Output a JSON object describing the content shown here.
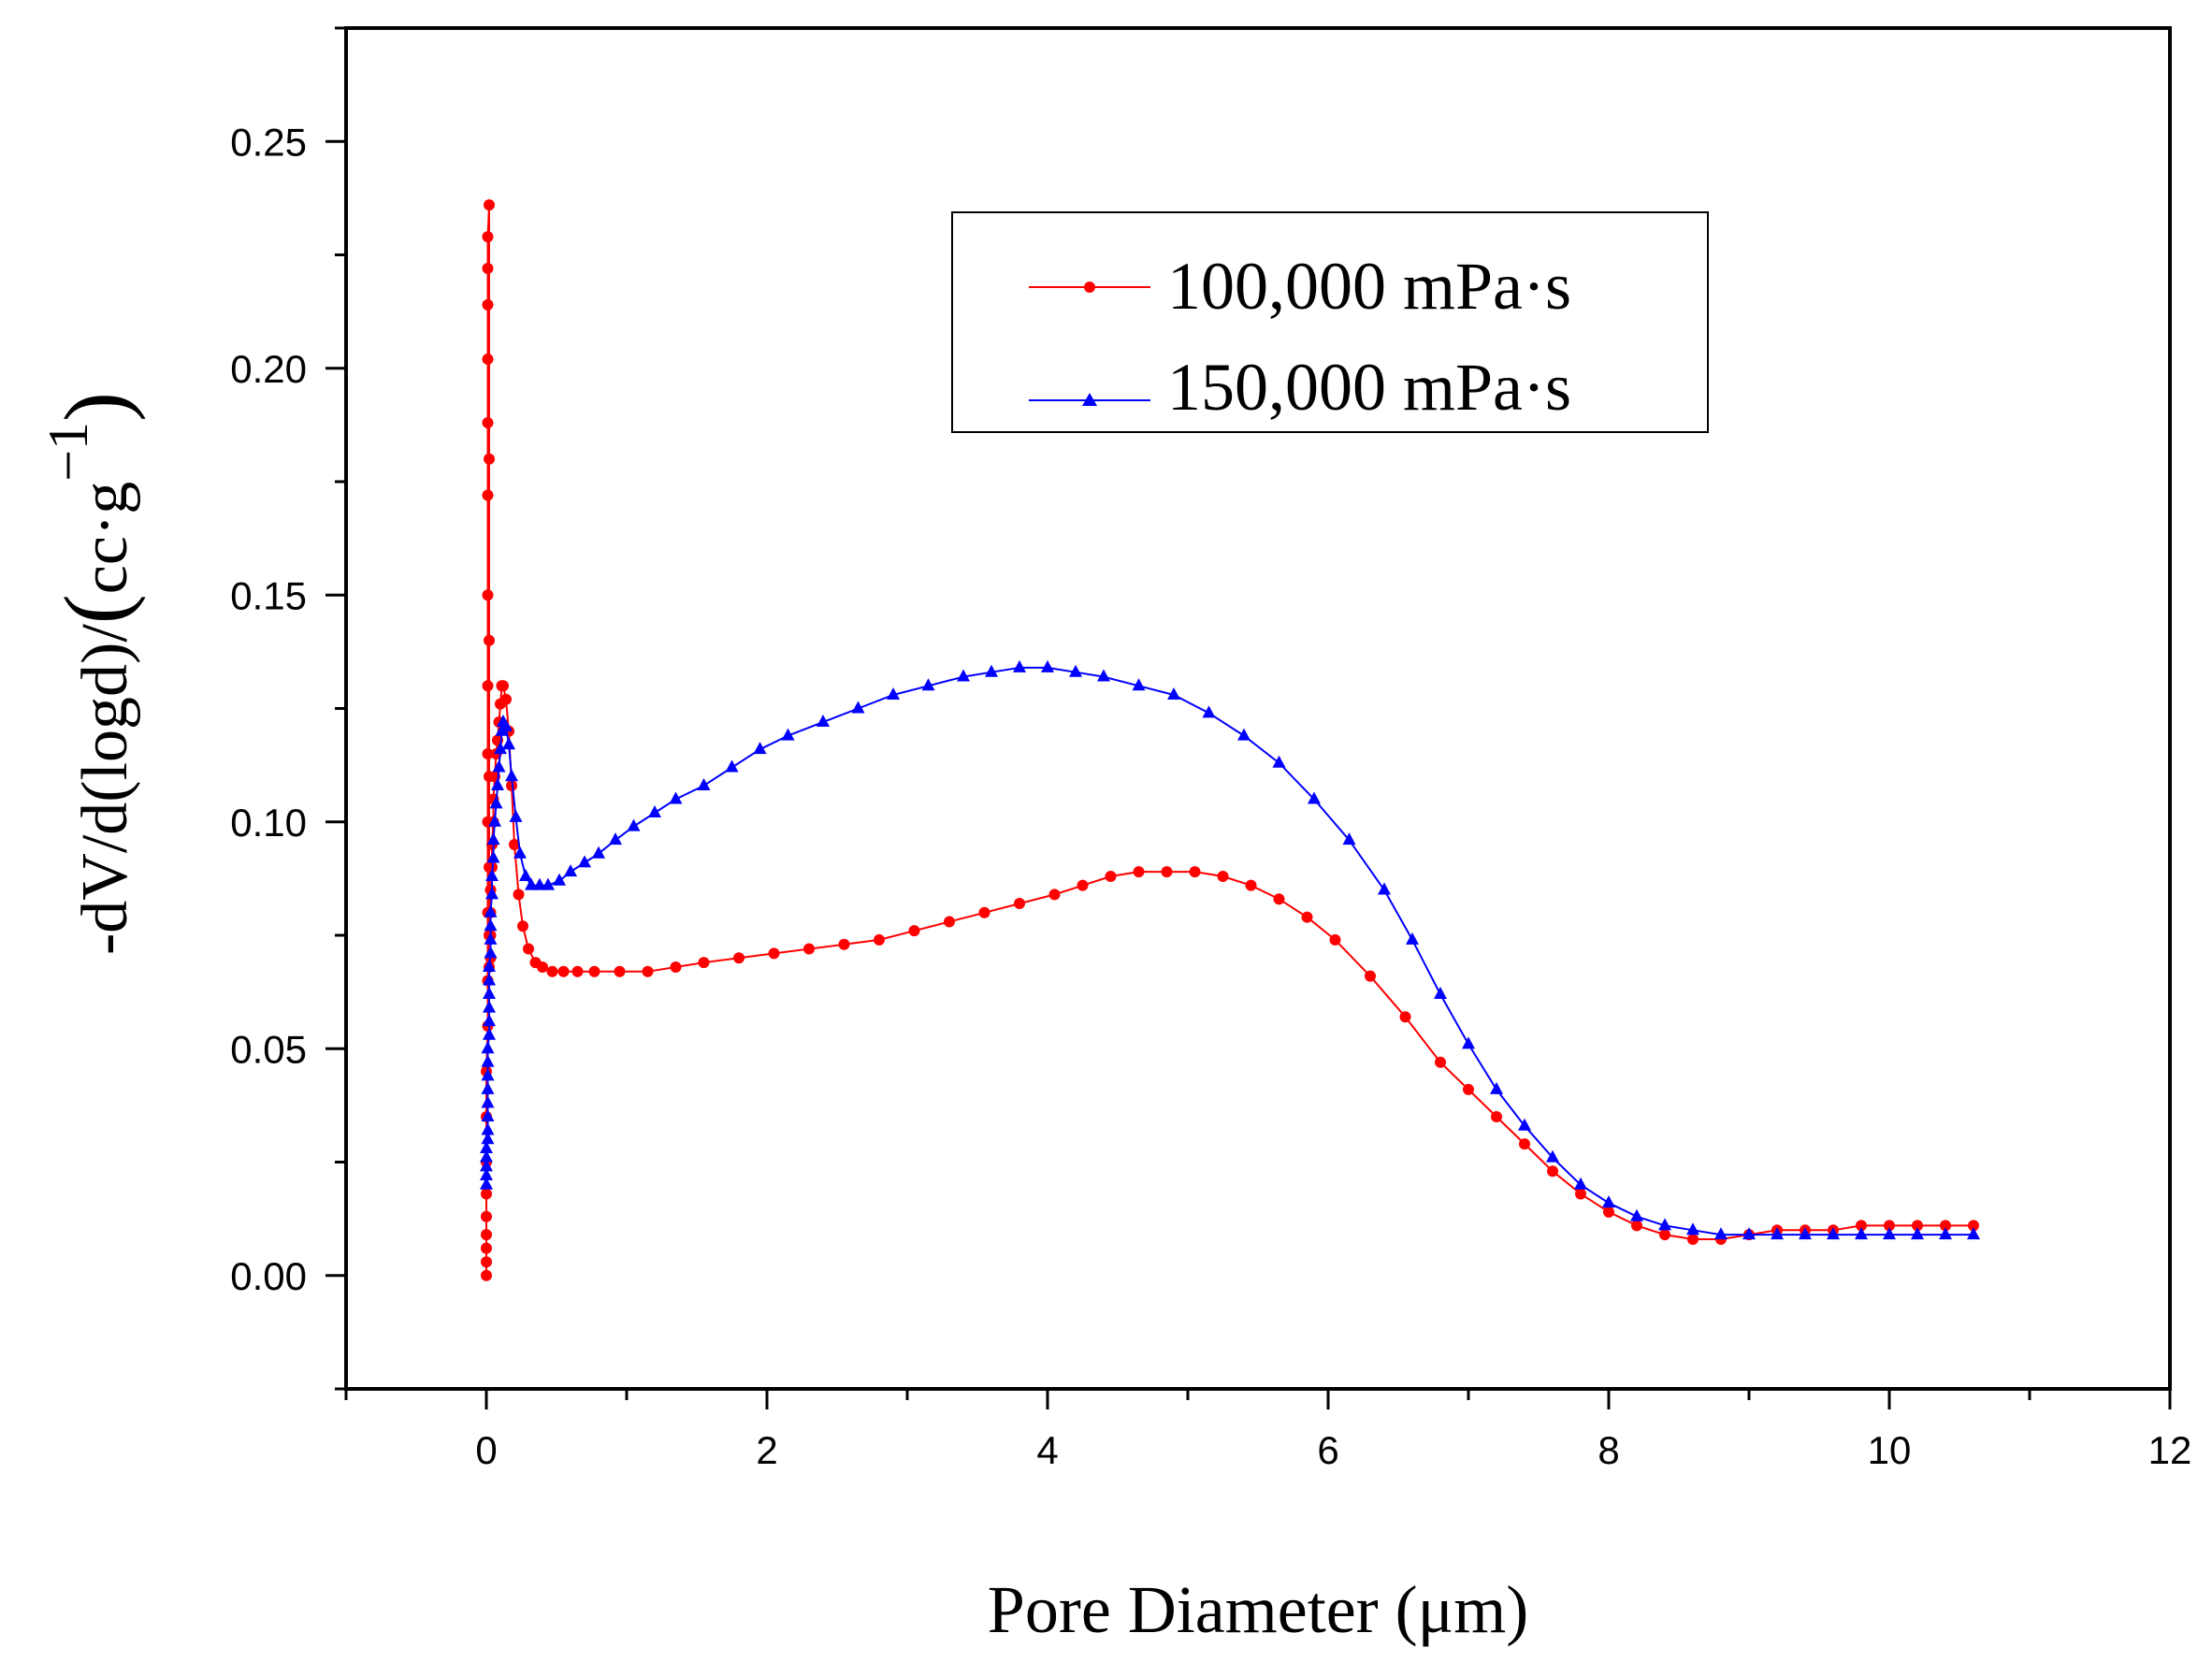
{
  "chart_data": {
    "type": "line",
    "xlabel": "Pore Diameter (μm)",
    "ylabel": {
      "main": "-dV/d(logd)/",
      "open": "(",
      "unit": "cc·g",
      "exp": "−1",
      "close": ")"
    },
    "xlim": [
      -1,
      12
    ],
    "ylim": [
      -0.025,
      0.275
    ],
    "xticks": [
      0,
      2,
      4,
      6,
      8,
      10,
      12
    ],
    "xtick_labels": [
      "0",
      "2",
      "4",
      "6",
      "8",
      "10",
      "12"
    ],
    "yticks": [
      0.0,
      0.05,
      0.1,
      0.15,
      0.2,
      0.25
    ],
    "ytick_labels": [
      "0.00",
      "0.05",
      "0.10",
      "0.15",
      "0.20",
      "0.25"
    ],
    "legend_position": "top-right",
    "series": [
      {
        "name": "100,000 mPa·s",
        "color": "#ff0000",
        "marker": "circle",
        "x": [
          0.0,
          0.0,
          0.0,
          0.0,
          0.0,
          0.0,
          0.0,
          0.0,
          0.0,
          0.01,
          0.01,
          0.01,
          0.01,
          0.01,
          0.01,
          0.01,
          0.01,
          0.01,
          0.01,
          0.01,
          0.01,
          0.01,
          0.02,
          0.02,
          0.02,
          0.02,
          0.02,
          0.02,
          0.02,
          0.03,
          0.03,
          0.03,
          0.03,
          0.04,
          0.04,
          0.05,
          0.05,
          0.06,
          0.07,
          0.08,
          0.09,
          0.1,
          0.11,
          0.12,
          0.14,
          0.16,
          0.18,
          0.2,
          0.23,
          0.26,
          0.3,
          0.35,
          0.4,
          0.47,
          0.55,
          0.65,
          0.77,
          0.95,
          1.15,
          1.35,
          1.55,
          1.8,
          2.05,
          2.3,
          2.55,
          2.8,
          3.05,
          3.3,
          3.55,
          3.8,
          4.05,
          4.25,
          4.45,
          4.65,
          4.85,
          5.05,
          5.25,
          5.45,
          5.65,
          5.85,
          6.05,
          6.3,
          6.55,
          6.8,
          7.0,
          7.2,
          7.4,
          7.6,
          7.8,
          8.0,
          8.2,
          8.4,
          8.6,
          8.8,
          9.0,
          9.2,
          9.4,
          9.6,
          9.8,
          10.0,
          10.2,
          10.4,
          10.6
        ],
        "y": [
          0.0,
          0.003,
          0.006,
          0.009,
          0.013,
          0.018,
          0.025,
          0.035,
          0.045,
          0.055,
          0.065,
          0.08,
          0.1,
          0.115,
          0.13,
          0.15,
          0.172,
          0.188,
          0.202,
          0.214,
          0.222,
          0.229,
          0.236,
          0.18,
          0.14,
          0.11,
          0.09,
          0.075,
          0.068,
          0.07,
          0.075,
          0.08,
          0.085,
          0.09,
          0.095,
          0.1,
          0.105,
          0.11,
          0.115,
          0.118,
          0.122,
          0.126,
          0.13,
          0.13,
          0.127,
          0.12,
          0.108,
          0.095,
          0.084,
          0.077,
          0.072,
          0.069,
          0.068,
          0.067,
          0.067,
          0.067,
          0.067,
          0.067,
          0.067,
          0.068,
          0.069,
          0.07,
          0.071,
          0.072,
          0.073,
          0.074,
          0.076,
          0.078,
          0.08,
          0.082,
          0.084,
          0.086,
          0.088,
          0.089,
          0.089,
          0.089,
          0.088,
          0.086,
          0.083,
          0.079,
          0.074,
          0.066,
          0.057,
          0.047,
          0.041,
          0.035,
          0.029,
          0.023,
          0.018,
          0.014,
          0.011,
          0.009,
          0.008,
          0.008,
          0.009,
          0.01,
          0.01,
          0.01,
          0.011,
          0.011,
          0.011,
          0.011,
          0.011
        ]
      },
      {
        "name": "150,000 mPa·s",
        "color": "#0000ff",
        "marker": "triangle",
        "x": [
          0.0,
          0.0,
          0.0,
          0.0,
          0.0,
          0.01,
          0.01,
          0.01,
          0.01,
          0.01,
          0.01,
          0.01,
          0.01,
          0.02,
          0.02,
          0.02,
          0.02,
          0.02,
          0.02,
          0.03,
          0.03,
          0.03,
          0.03,
          0.04,
          0.04,
          0.05,
          0.05,
          0.06,
          0.07,
          0.08,
          0.09,
          0.1,
          0.11,
          0.12,
          0.14,
          0.16,
          0.18,
          0.21,
          0.24,
          0.28,
          0.32,
          0.38,
          0.44,
          0.52,
          0.6,
          0.7,
          0.8,
          0.92,
          1.05,
          1.2,
          1.35,
          1.55,
          1.75,
          1.95,
          2.15,
          2.4,
          2.65,
          2.9,
          3.15,
          3.4,
          3.6,
          3.8,
          4.0,
          4.2,
          4.4,
          4.65,
          4.9,
          5.15,
          5.4,
          5.65,
          5.9,
          6.15,
          6.4,
          6.6,
          6.8,
          7.0,
          7.2,
          7.4,
          7.6,
          7.8,
          8.0,
          8.2,
          8.4,
          8.6,
          8.8,
          9.0,
          9.2,
          9.4,
          9.6,
          9.8,
          10.0,
          10.2,
          10.4,
          10.6
        ],
        "y": [
          0.02,
          0.022,
          0.024,
          0.026,
          0.028,
          0.03,
          0.032,
          0.035,
          0.038,
          0.041,
          0.044,
          0.047,
          0.05,
          0.053,
          0.056,
          0.059,
          0.062,
          0.065,
          0.068,
          0.071,
          0.074,
          0.077,
          0.08,
          0.084,
          0.088,
          0.092,
          0.096,
          0.1,
          0.104,
          0.108,
          0.112,
          0.116,
          0.12,
          0.122,
          0.121,
          0.117,
          0.11,
          0.101,
          0.093,
          0.088,
          0.086,
          0.086,
          0.086,
          0.087,
          0.089,
          0.091,
          0.093,
          0.096,
          0.099,
          0.102,
          0.105,
          0.108,
          0.112,
          0.116,
          0.119,
          0.122,
          0.125,
          0.128,
          0.13,
          0.132,
          0.133,
          0.134,
          0.134,
          0.133,
          0.132,
          0.13,
          0.128,
          0.124,
          0.119,
          0.113,
          0.105,
          0.096,
          0.085,
          0.074,
          0.062,
          0.051,
          0.041,
          0.033,
          0.026,
          0.02,
          0.016,
          0.013,
          0.011,
          0.01,
          0.009,
          0.009,
          0.009,
          0.009,
          0.009,
          0.009,
          0.009,
          0.009,
          0.009,
          0.009
        ]
      }
    ]
  }
}
